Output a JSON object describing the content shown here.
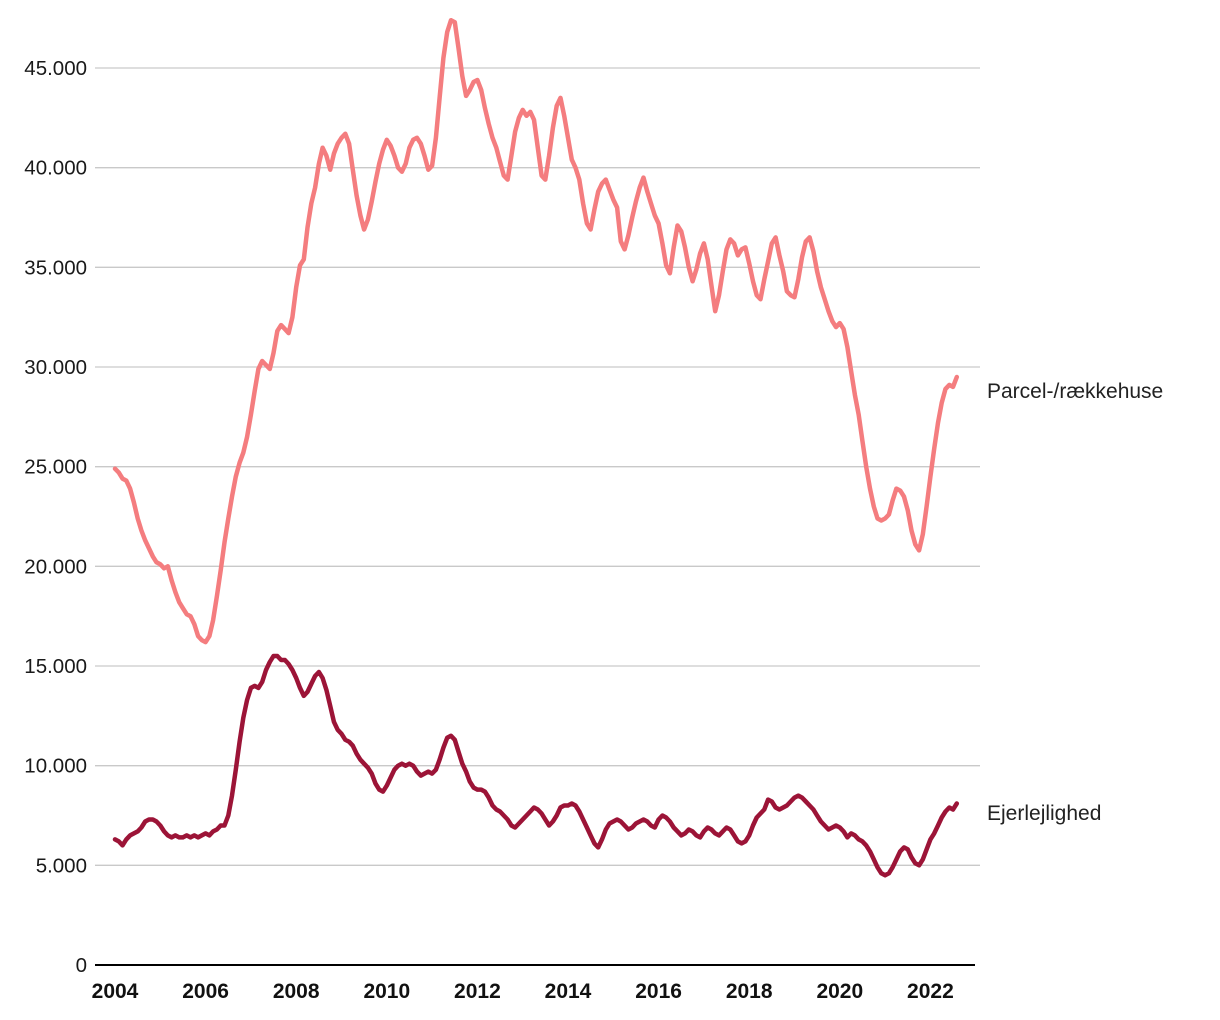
{
  "page": {
    "background": "#ffffff"
  },
  "chart_data": {
    "type": "line",
    "title": "",
    "xlabel": "",
    "ylabel": "",
    "grid": "horizontal",
    "legend_position": "right-of-line-ends",
    "x_start_year": 2004,
    "points_per_year": 12,
    "ylim": [
      0,
      47500
    ],
    "x_ticks": [
      {
        "year": 2004,
        "label": "2004"
      },
      {
        "year": 2006,
        "label": "2006"
      },
      {
        "year": 2008,
        "label": "2008"
      },
      {
        "year": 2010,
        "label": "2010"
      },
      {
        "year": 2012,
        "label": "2012"
      },
      {
        "year": 2014,
        "label": "2014"
      },
      {
        "year": 2016,
        "label": "2016"
      },
      {
        "year": 2018,
        "label": "2018"
      },
      {
        "year": 2020,
        "label": "2020"
      },
      {
        "year": 2022,
        "label": "2022"
      }
    ],
    "y_ticks": [
      {
        "value": 0,
        "label": "0"
      },
      {
        "value": 5000,
        "label": "5.000"
      },
      {
        "value": 10000,
        "label": "10.000"
      },
      {
        "value": 15000,
        "label": "15.000"
      },
      {
        "value": 20000,
        "label": "20.000"
      },
      {
        "value": 25000,
        "label": "25.000"
      },
      {
        "value": 30000,
        "label": "30.000"
      },
      {
        "value": 35000,
        "label": "35.000"
      },
      {
        "value": 40000,
        "label": "40.000"
      },
      {
        "value": 45000,
        "label": "45.000"
      }
    ],
    "axis_color": "#000000",
    "gridline_color": "#c9c9c9",
    "series": [
      {
        "name": "Parcel-/rækkehuse",
        "color": "#f47d7f",
        "values": [
          24900,
          24700,
          24400,
          24300,
          23900,
          23200,
          22400,
          21800,
          21300,
          20900,
          20500,
          20200,
          20100,
          19900,
          20000,
          19300,
          18700,
          18200,
          17900,
          17600,
          17500,
          17100,
          16500,
          16300,
          16200,
          16500,
          17300,
          18500,
          19800,
          21200,
          22400,
          23500,
          24500,
          25200,
          25700,
          26500,
          27600,
          28800,
          29900,
          30300,
          30100,
          29900,
          30700,
          31800,
          32100,
          31900,
          31700,
          32500,
          34000,
          35100,
          35400,
          37000,
          38200,
          39000,
          40200,
          41000,
          40600,
          39900,
          40700,
          41200,
          41500,
          41700,
          41200,
          39900,
          38600,
          37600,
          36900,
          37400,
          38300,
          39300,
          40200,
          40900,
          41400,
          41100,
          40600,
          40000,
          39800,
          40200,
          41000,
          41400,
          41500,
          41200,
          40600,
          39900,
          40100,
          41500,
          43500,
          45500,
          46800,
          47400,
          47300,
          46000,
          44600,
          43600,
          43900,
          44300,
          44400,
          43900,
          43000,
          42200,
          41500,
          41000,
          40300,
          39600,
          39400,
          40600,
          41800,
          42500,
          42900,
          42600,
          42800,
          42400,
          41000,
          39600,
          39400,
          40600,
          42000,
          43100,
          43500,
          42600,
          41500,
          40400,
          40000,
          39400,
          38200,
          37200,
          36900,
          37900,
          38800,
          39200,
          39400,
          38900,
          38400,
          38000,
          36300,
          35900,
          36600,
          37500,
          38300,
          39000,
          39500,
          38800,
          38200,
          37600,
          37200,
          36200,
          35100,
          34700,
          36000,
          37100,
          36800,
          36000,
          35000,
          34300,
          34900,
          35700,
          36200,
          35400,
          34100,
          32800,
          33600,
          34800,
          35900,
          36400,
          36200,
          35600,
          35900,
          36000,
          35200,
          34300,
          33600,
          33400,
          34400,
          35300,
          36200,
          36500,
          35600,
          34800,
          33800,
          33600,
          33500,
          34400,
          35500,
          36300,
          36500,
          35800,
          34800,
          34000,
          33400,
          32800,
          32300,
          32000,
          32200,
          31900,
          31000,
          29800,
          28600,
          27600,
          26300,
          25000,
          23900,
          23000,
          22400,
          22300,
          22400,
          22600,
          23300,
          23900,
          23800,
          23500,
          22800,
          21800,
          21100,
          20800,
          21600,
          23000,
          24500,
          25900,
          27200,
          28200,
          28900,
          29100,
          29000,
          29500
        ]
      },
      {
        "name": "Ejerlejlighed",
        "color": "#9c1437",
        "values": [
          6300,
          6200,
          6000,
          6300,
          6500,
          6600,
          6700,
          6900,
          7200,
          7300,
          7300,
          7200,
          7000,
          6700,
          6500,
          6400,
          6500,
          6400,
          6400,
          6500,
          6400,
          6500,
          6400,
          6500,
          6600,
          6500,
          6700,
          6800,
          7000,
          7000,
          7500,
          8500,
          9800,
          11200,
          12400,
          13300,
          13900,
          14000,
          13900,
          14200,
          14800,
          15200,
          15500,
          15500,
          15300,
          15300,
          15100,
          14800,
          14400,
          13900,
          13500,
          13700,
          14100,
          14500,
          14700,
          14400,
          13800,
          13000,
          12200,
          11800,
          11600,
          11300,
          11200,
          11000,
          10600,
          10300,
          10100,
          9900,
          9600,
          9100,
          8800,
          8700,
          9000,
          9400,
          9800,
          10000,
          10100,
          10000,
          10100,
          10000,
          9700,
          9500,
          9600,
          9700,
          9600,
          9800,
          10300,
          10900,
          11400,
          11500,
          11300,
          10700,
          10100,
          9700,
          9200,
          8900,
          8800,
          8800,
          8700,
          8400,
          8000,
          7800,
          7700,
          7500,
          7300,
          7000,
          6900,
          7100,
          7300,
          7500,
          7700,
          7900,
          7800,
          7600,
          7300,
          7000,
          7200,
          7500,
          7900,
          8000,
          8000,
          8100,
          8000,
          7700,
          7300,
          6900,
          6500,
          6100,
          5900,
          6300,
          6800,
          7100,
          7200,
          7300,
          7200,
          7000,
          6800,
          6900,
          7100,
          7200,
          7300,
          7200,
          7000,
          6900,
          7300,
          7500,
          7400,
          7200,
          6900,
          6700,
          6500,
          6600,
          6800,
          6700,
          6500,
          6400,
          6700,
          6900,
          6800,
          6600,
          6500,
          6700,
          6900,
          6800,
          6500,
          6200,
          6100,
          6200,
          6500,
          7000,
          7400,
          7600,
          7800,
          8300,
          8200,
          7900,
          7800,
          7900,
          8000,
          8200,
          8400,
          8500,
          8400,
          8200,
          8000,
          7800,
          7500,
          7200,
          7000,
          6800,
          6900,
          7000,
          6900,
          6700,
          6400,
          6600,
          6500,
          6300,
          6200,
          6000,
          5700,
          5300,
          4900,
          4600,
          4500,
          4600,
          4900,
          5300,
          5700,
          5900,
          5800,
          5400,
          5100,
          5000,
          5300,
          5800,
          6300,
          6600,
          7000,
          7400,
          7700,
          7900,
          7800,
          8100
        ]
      }
    ]
  }
}
